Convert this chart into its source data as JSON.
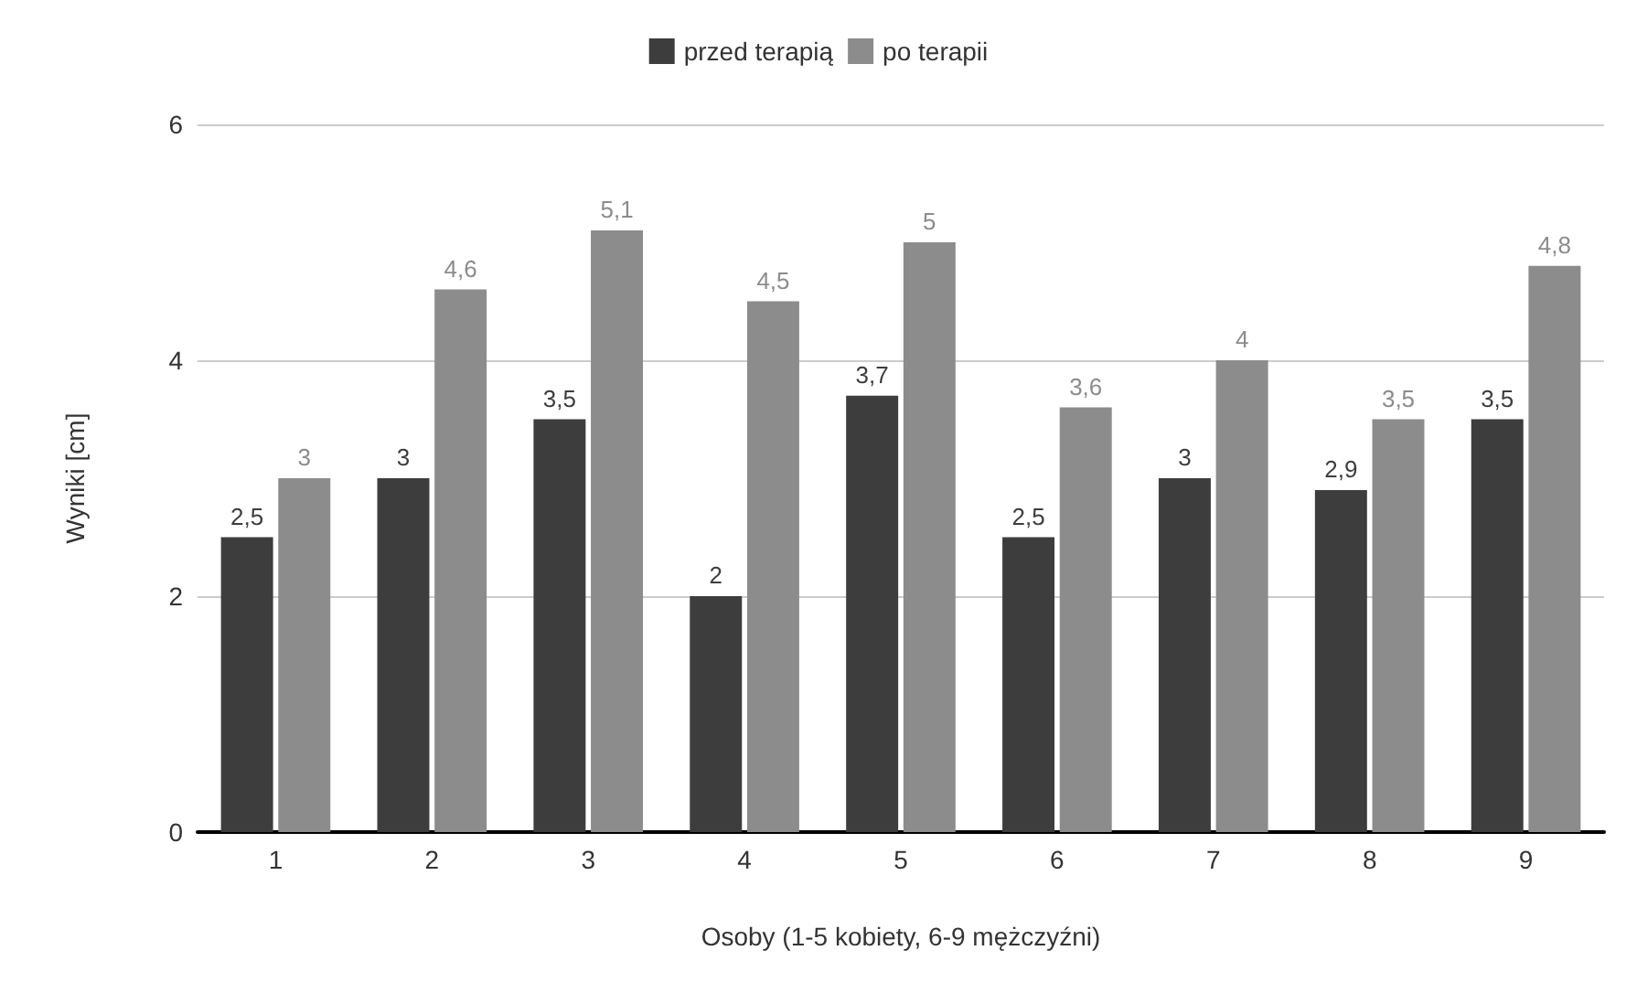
{
  "chart_data": {
    "type": "bar",
    "xlabel": "Osoby (1-5 kobiety, 6-9 mężczyźni)",
    "ylabel": "Wyniki [cm]",
    "categories": [
      "1",
      "2",
      "3",
      "4",
      "5",
      "6",
      "7",
      "8",
      "9"
    ],
    "series": [
      {
        "name": "przed terapią",
        "color": "#3d3d3d",
        "values": [
          2.5,
          3,
          3.5,
          2,
          3.7,
          2.5,
          3,
          2.9,
          3.5
        ],
        "value_labels": [
          "2,5",
          "3",
          "3,5",
          "2",
          "3,7",
          "2,5",
          "3",
          "2,9",
          "3,5"
        ]
      },
      {
        "name": "po terapii",
        "color": "#8c8c8c",
        "values": [
          3,
          4.6,
          5.1,
          4.5,
          5,
          3.6,
          4,
          3.5,
          4.8
        ],
        "value_labels": [
          "3",
          "4,6",
          "5,1",
          "4,5",
          "5",
          "3,6",
          "4",
          "3,5",
          "4,8"
        ]
      }
    ],
    "ylim": [
      0,
      6
    ],
    "yticks": [
      0,
      2,
      4,
      6
    ],
    "grid": "y",
    "legend": "top"
  }
}
